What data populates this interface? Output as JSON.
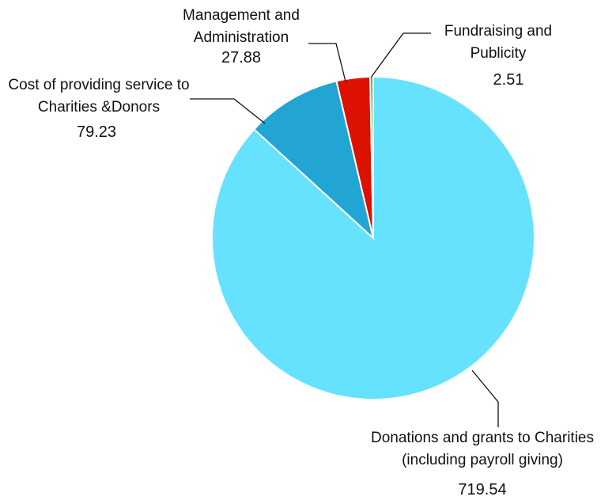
{
  "chart_data": {
    "type": "pie",
    "categories": [
      "Donations and grants to Charities (including payroll giving)",
      "Cost of providing service to Charities &Donors",
      "Management and Administration",
      "Fundraising and Publicity"
    ],
    "values": [
      719.54,
      79.23,
      27.88,
      2.51
    ],
    "colors": [
      "#66e2ff",
      "#22a5d3",
      "#dd1100",
      "#77aa11"
    ]
  }
}
